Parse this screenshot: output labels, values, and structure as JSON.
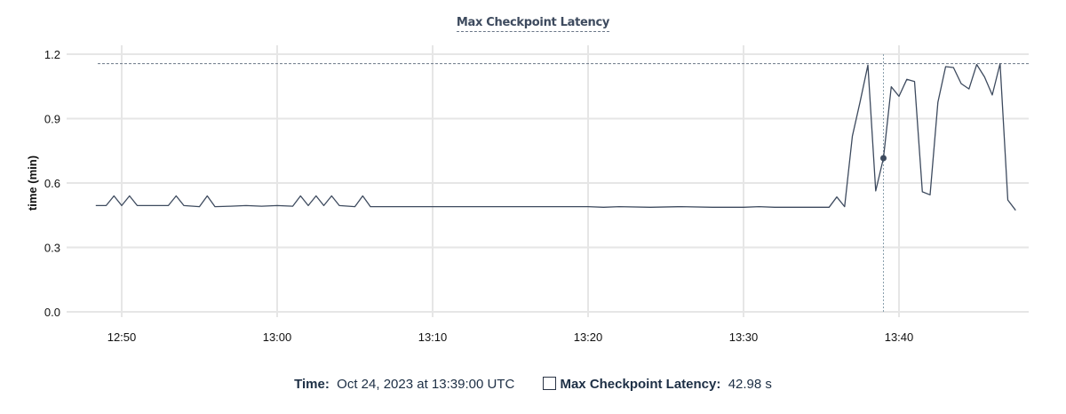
{
  "chart_data": {
    "type": "line",
    "title": "Max Checkpoint Latency",
    "xlabel": "",
    "ylabel": "time (min)",
    "ylim": [
      0,
      1.2
    ],
    "yticks": [
      "0.0",
      "0.3",
      "0.6",
      "0.9",
      "1.2"
    ],
    "xticks": [
      "12:50",
      "13:00",
      "13:10",
      "13:20",
      "13:30",
      "13:40"
    ],
    "xlim": [
      "12:48:20",
      "13:48:00"
    ],
    "grid": true,
    "line_color": "#3d4a5e",
    "max_reference_line": 1.156,
    "hover_time": "13:39:00",
    "series": [
      {
        "name": "Max Checkpoint Latency",
        "points": [
          [
            "12:48:20",
            0.495
          ],
          [
            "12:49:00",
            0.495
          ],
          [
            "12:49:30",
            0.54
          ],
          [
            "12:50:00",
            0.495
          ],
          [
            "12:50:30",
            0.54
          ],
          [
            "12:51:00",
            0.495
          ],
          [
            "12:53:00",
            0.495
          ],
          [
            "12:53:30",
            0.54
          ],
          [
            "12:54:00",
            0.495
          ],
          [
            "12:55:00",
            0.49
          ],
          [
            "12:55:30",
            0.54
          ],
          [
            "12:56:00",
            0.49
          ],
          [
            "12:57:00",
            0.492
          ],
          [
            "12:58:00",
            0.495
          ],
          [
            "12:59:00",
            0.492
          ],
          [
            "13:00:00",
            0.495
          ],
          [
            "13:01:00",
            0.492
          ],
          [
            "13:01:30",
            0.54
          ],
          [
            "13:02:00",
            0.495
          ],
          [
            "13:02:30",
            0.54
          ],
          [
            "13:03:00",
            0.495
          ],
          [
            "13:03:30",
            0.54
          ],
          [
            "13:04:00",
            0.495
          ],
          [
            "13:05:00",
            0.49
          ],
          [
            "13:05:30",
            0.54
          ],
          [
            "13:06:00",
            0.49
          ],
          [
            "13:07:00",
            0.49
          ],
          [
            "13:15:00",
            0.49
          ],
          [
            "13:20:00",
            0.49
          ],
          [
            "13:21:00",
            0.487
          ],
          [
            "13:22:00",
            0.49
          ],
          [
            "13:24:00",
            0.487
          ],
          [
            "13:26:00",
            0.49
          ],
          [
            "13:28:00",
            0.487
          ],
          [
            "13:30:00",
            0.487
          ],
          [
            "13:31:00",
            0.49
          ],
          [
            "13:32:00",
            0.487
          ],
          [
            "13:35:30",
            0.487
          ],
          [
            "13:36:00",
            0.535
          ],
          [
            "13:36:30",
            0.49
          ],
          [
            "13:37:00",
            0.818
          ],
          [
            "13:37:30",
            0.98
          ],
          [
            "13:38:00",
            1.149
          ],
          [
            "13:38:30",
            0.563
          ],
          [
            "13:39:00",
            0.716
          ],
          [
            "13:39:30",
            1.048
          ],
          [
            "13:40:00",
            1.004
          ],
          [
            "13:40:30",
            1.083
          ],
          [
            "13:41:00",
            1.073
          ],
          [
            "13:41:30",
            0.559
          ],
          [
            "13:42:00",
            0.545
          ],
          [
            "13:42:30",
            0.976
          ],
          [
            "13:43:00",
            1.142
          ],
          [
            "13:43:30",
            1.138
          ],
          [
            "13:44:00",
            1.063
          ],
          [
            "13:44:30",
            1.038
          ],
          [
            "13:45:00",
            1.152
          ],
          [
            "13:45:30",
            1.094
          ],
          [
            "13:46:00",
            1.01
          ],
          [
            "13:46:30",
            1.156
          ],
          [
            "13:47:00",
            0.521
          ],
          [
            "13:47:30",
            0.473
          ]
        ]
      }
    ]
  },
  "legend": {
    "time_label": "Time:",
    "time_value": "Oct 24, 2023 at 13:39:00 UTC",
    "series_label": "Max Checkpoint Latency:",
    "series_value": "42.98 s"
  }
}
